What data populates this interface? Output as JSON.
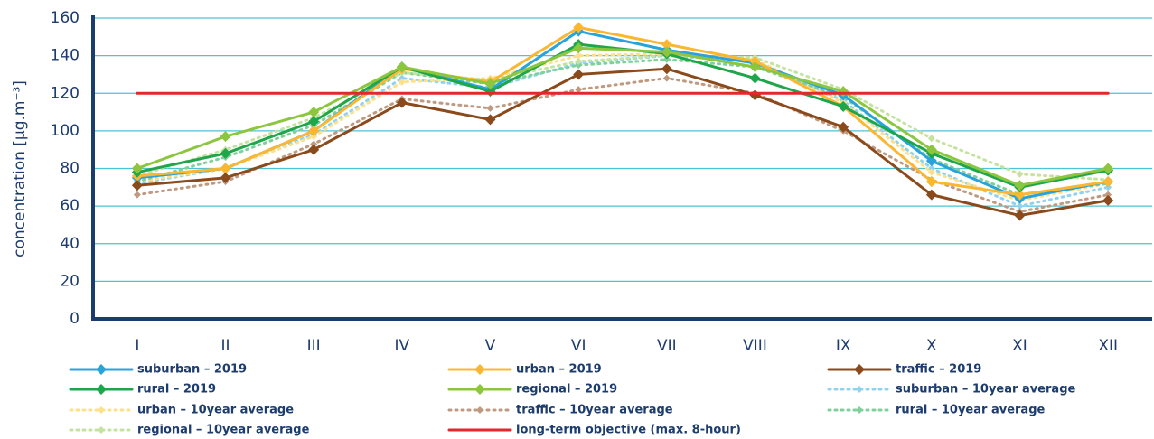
{
  "chart_data": {
    "type": "line",
    "y_label": "concentration [µg.m⁻³]",
    "categories": [
      "I",
      "II",
      "III",
      "IV",
      "V",
      "VI",
      "VII",
      "VIII",
      "IX",
      "X",
      "XI",
      "XII"
    ],
    "ylim": [
      0,
      160
    ],
    "yticks": [
      0,
      20,
      40,
      60,
      80,
      100,
      120,
      140,
      160
    ],
    "grid": true,
    "series": [
      {
        "name": "suburban – 2019",
        "color": "#29a3dc",
        "style": "solid",
        "marker": "diamond",
        "values": [
          75,
          80,
          100,
          134,
          122,
          153,
          143,
          136,
          119,
          84,
          64,
          73
        ]
      },
      {
        "name": "urban – 2019",
        "color": "#fbb731",
        "style": "solid",
        "marker": "diamond",
        "values": [
          76,
          80,
          100,
          133,
          126,
          155,
          146,
          137,
          113,
          73,
          66,
          73
        ]
      },
      {
        "name": "traffic – 2019",
        "color": "#8b4a1c",
        "style": "solid",
        "marker": "diamond",
        "values": [
          71,
          75,
          90,
          115,
          106,
          130,
          133,
          119,
          102,
          66,
          55,
          63
        ]
      },
      {
        "name": "rural – 2019",
        "color": "#1fa64b",
        "style": "solid",
        "marker": "diamond",
        "values": [
          78,
          88,
          105,
          134,
          121,
          146,
          141,
          128,
          113,
          88,
          70,
          79
        ]
      },
      {
        "name": "regional – 2019",
        "color": "#8cc63f",
        "style": "solid",
        "marker": "diamond",
        "values": [
          80,
          97,
          110,
          134,
          125,
          144,
          142,
          134,
          121,
          90,
          71,
          80
        ]
      },
      {
        "name": "suburban – 10year average",
        "color": "#8fd3ef",
        "style": "dotted",
        "marker": "diamond",
        "values": [
          72,
          80,
          98,
          128,
          123,
          136,
          140,
          137,
          116,
          80,
          60,
          70
        ]
      },
      {
        "name": "urban – 10year average",
        "color": "#fde08a",
        "style": "dotted",
        "marker": "diamond",
        "values": [
          73,
          80,
          97,
          126,
          128,
          140,
          141,
          138,
          115,
          78,
          63,
          72
        ]
      },
      {
        "name": "traffic – 10year average",
        "color": "#c09a80",
        "style": "dotted",
        "marker": "diamond",
        "values": [
          66,
          73,
          93,
          117,
          112,
          122,
          128,
          120,
          100,
          74,
          57,
          66
        ]
      },
      {
        "name": "rural  – 10year average",
        "color": "#7fd09a",
        "style": "dotted",
        "marker": "diamond",
        "values": [
          73,
          86,
          103,
          131,
          125,
          135,
          138,
          134,
          118,
          85,
          66,
          72
        ]
      },
      {
        "name": "regional – 10year average",
        "color": "#c5e3a0",
        "style": "dotted",
        "marker": "diamond",
        "values": [
          76,
          90,
          107,
          131,
          127,
          137,
          140,
          139,
          122,
          96,
          77,
          74
        ]
      },
      {
        "name": "long-term objective (max. 8-hour)",
        "color": "#e5262a",
        "style": "solid",
        "marker": "none",
        "values": [
          120,
          120,
          120,
          120,
          120,
          120,
          120,
          120,
          120,
          120,
          120,
          120
        ]
      }
    ]
  }
}
